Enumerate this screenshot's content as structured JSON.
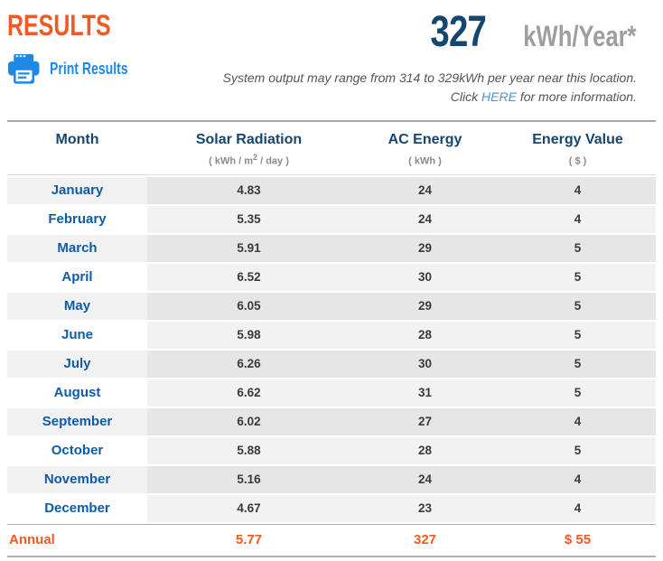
{
  "header": {
    "title": "RESULTS",
    "print_button": {
      "label": "Print Results"
    },
    "annual_output": {
      "value": "327",
      "unit": "kWh/Year*"
    },
    "note": {
      "line1": "System output may range from 314 to 329kWh per year near this location.",
      "line2_prefix": "Click ",
      "line2_link": "HERE",
      "line2_suffix": " for more information."
    }
  },
  "table": {
    "columns": [
      {
        "label": "Month",
        "unit_prefix": "",
        "unit_sup": "",
        "unit_suffix": ""
      },
      {
        "label": "Solar Radiation",
        "unit_prefix": "( kWh / m",
        "unit_sup": "2",
        "unit_suffix": " / day )"
      },
      {
        "label": "AC Energy",
        "unit_prefix": "( kWh )",
        "unit_sup": "",
        "unit_suffix": ""
      },
      {
        "label": "Energy Value",
        "unit_prefix": "( $ )",
        "unit_sup": "",
        "unit_suffix": ""
      }
    ],
    "rows": [
      {
        "month": "January",
        "solar_radiation": "4.83",
        "ac_energy": "24",
        "energy_value": "4"
      },
      {
        "month": "February",
        "solar_radiation": "5.35",
        "ac_energy": "24",
        "energy_value": "4"
      },
      {
        "month": "March",
        "solar_radiation": "5.91",
        "ac_energy": "29",
        "energy_value": "5"
      },
      {
        "month": "April",
        "solar_radiation": "6.52",
        "ac_energy": "30",
        "energy_value": "5"
      },
      {
        "month": "May",
        "solar_radiation": "6.05",
        "ac_energy": "29",
        "energy_value": "5"
      },
      {
        "month": "June",
        "solar_radiation": "5.98",
        "ac_energy": "28",
        "energy_value": "5"
      },
      {
        "month": "July",
        "solar_radiation": "6.26",
        "ac_energy": "30",
        "energy_value": "5"
      },
      {
        "month": "August",
        "solar_radiation": "6.62",
        "ac_energy": "31",
        "energy_value": "5"
      },
      {
        "month": "September",
        "solar_radiation": "6.02",
        "ac_energy": "27",
        "energy_value": "4"
      },
      {
        "month": "October",
        "solar_radiation": "5.88",
        "ac_energy": "28",
        "energy_value": "5"
      },
      {
        "month": "November",
        "solar_radiation": "5.16",
        "ac_energy": "24",
        "energy_value": "4"
      },
      {
        "month": "December",
        "solar_radiation": "4.67",
        "ac_energy": "23",
        "energy_value": "4"
      }
    ],
    "annual": {
      "label": "Annual",
      "solar_radiation": "5.77",
      "ac_energy": "327",
      "energy_value": "$ 55"
    }
  },
  "colors": {
    "accent_orange": "#F15A24",
    "navy": "#14466F",
    "month_blue": "#0D5CA8",
    "print_blue": "#1E88E5",
    "link_blue": "#4A90D6",
    "unit_gray": "#8A8A8A",
    "value_gray": "#3A3A3A",
    "kwh_year_gray": "#9E9E9E"
  }
}
